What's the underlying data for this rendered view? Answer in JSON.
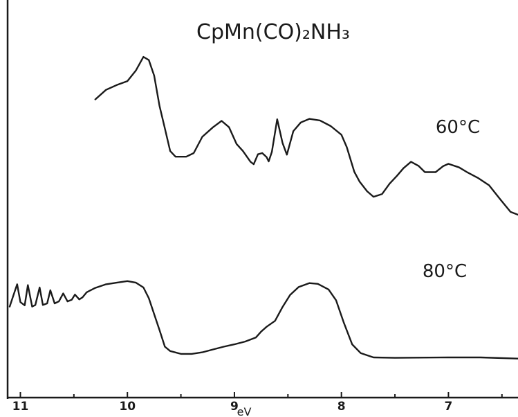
{
  "chart_data": {
    "type": "line",
    "title": "CpMn(CO)₂NH₃",
    "xlabel": "eV",
    "ylabel": "",
    "x_reversed": true,
    "xlim": [
      11.1,
      6.35
    ],
    "ylim": [
      0,
      1
    ],
    "x_ticks": [
      {
        "value": 11,
        "label": "11"
      },
      {
        "value": 10,
        "label": "10"
      },
      {
        "value": 9,
        "label": "9"
      },
      {
        "value": 8,
        "label": "8"
      },
      {
        "value": 7,
        "label": "7"
      }
    ],
    "minor_ticks": [
      10.5,
      9.5,
      8.5,
      7.5,
      6.5
    ],
    "grid": false,
    "color": "#1a1a1a",
    "series": [
      {
        "name": "60°C",
        "points": [
          [
            10.3,
            0.75
          ],
          [
            10.2,
            0.774
          ],
          [
            10.1,
            0.786
          ],
          [
            10.0,
            0.796
          ],
          [
            9.92,
            0.823
          ],
          [
            9.85,
            0.857
          ],
          [
            9.8,
            0.849
          ],
          [
            9.75,
            0.81
          ],
          [
            9.7,
            0.734
          ],
          [
            9.65,
            0.677
          ],
          [
            9.6,
            0.62
          ],
          [
            9.55,
            0.606
          ],
          [
            9.45,
            0.606
          ],
          [
            9.38,
            0.615
          ],
          [
            9.3,
            0.656
          ],
          [
            9.2,
            0.68
          ],
          [
            9.12,
            0.696
          ],
          [
            9.05,
            0.68
          ],
          [
            8.98,
            0.638
          ],
          [
            8.92,
            0.62
          ],
          [
            8.85,
            0.593
          ],
          [
            8.82,
            0.587
          ],
          [
            8.78,
            0.612
          ],
          [
            8.74,
            0.615
          ],
          [
            8.7,
            0.605
          ],
          [
            8.68,
            0.594
          ],
          [
            8.65,
            0.618
          ],
          [
            8.6,
            0.7
          ],
          [
            8.55,
            0.64
          ],
          [
            8.51,
            0.611
          ],
          [
            8.45,
            0.67
          ],
          [
            8.38,
            0.692
          ],
          [
            8.3,
            0.701
          ],
          [
            8.2,
            0.697
          ],
          [
            8.1,
            0.683
          ],
          [
            8.0,
            0.661
          ],
          [
            7.95,
            0.63
          ],
          [
            7.88,
            0.568
          ],
          [
            7.83,
            0.543
          ],
          [
            7.76,
            0.519
          ],
          [
            7.7,
            0.505
          ],
          [
            7.62,
            0.512
          ],
          [
            7.55,
            0.538
          ],
          [
            7.48,
            0.558
          ],
          [
            7.42,
            0.577
          ],
          [
            7.35,
            0.593
          ],
          [
            7.28,
            0.583
          ],
          [
            7.22,
            0.567
          ],
          [
            7.12,
            0.567
          ],
          [
            7.05,
            0.582
          ],
          [
            7.0,
            0.588
          ],
          [
            6.9,
            0.579
          ],
          [
            6.82,
            0.566
          ],
          [
            6.72,
            0.552
          ],
          [
            6.62,
            0.534
          ],
          [
            6.52,
            0.5
          ],
          [
            6.42,
            0.467
          ],
          [
            6.35,
            0.46
          ]
        ]
      },
      {
        "name": "80°C",
        "points": [
          [
            11.1,
            0.229
          ],
          [
            11.07,
            0.253
          ],
          [
            11.03,
            0.285
          ],
          [
            11.0,
            0.24
          ],
          [
            10.96,
            0.232
          ],
          [
            10.93,
            0.283
          ],
          [
            10.89,
            0.229
          ],
          [
            10.86,
            0.233
          ],
          [
            10.82,
            0.277
          ],
          [
            10.79,
            0.233
          ],
          [
            10.75,
            0.237
          ],
          [
            10.72,
            0.27
          ],
          [
            10.68,
            0.237
          ],
          [
            10.64,
            0.242
          ],
          [
            10.6,
            0.262
          ],
          [
            10.56,
            0.242
          ],
          [
            10.52,
            0.246
          ],
          [
            10.49,
            0.259
          ],
          [
            10.45,
            0.247
          ],
          [
            10.42,
            0.252
          ],
          [
            10.38,
            0.265
          ],
          [
            10.3,
            0.276
          ],
          [
            10.2,
            0.285
          ],
          [
            10.1,
            0.289
          ],
          [
            10.0,
            0.293
          ],
          [
            9.92,
            0.289
          ],
          [
            9.85,
            0.277
          ],
          [
            9.8,
            0.25
          ],
          [
            9.75,
            0.21
          ],
          [
            9.7,
            0.17
          ],
          [
            9.65,
            0.128
          ],
          [
            9.6,
            0.117
          ],
          [
            9.5,
            0.11
          ],
          [
            9.4,
            0.11
          ],
          [
            9.3,
            0.114
          ],
          [
            9.2,
            0.121
          ],
          [
            9.1,
            0.128
          ],
          [
            9.0,
            0.134
          ],
          [
            8.9,
            0.141
          ],
          [
            8.8,
            0.151
          ],
          [
            8.75,
            0.166
          ],
          [
            8.7,
            0.178
          ],
          [
            8.62,
            0.193
          ],
          [
            8.55,
            0.228
          ],
          [
            8.48,
            0.258
          ],
          [
            8.4,
            0.278
          ],
          [
            8.3,
            0.288
          ],
          [
            8.22,
            0.286
          ],
          [
            8.12,
            0.272
          ],
          [
            8.05,
            0.245
          ],
          [
            7.98,
            0.19
          ],
          [
            7.9,
            0.134
          ],
          [
            7.82,
            0.112
          ],
          [
            7.7,
            0.101
          ],
          [
            7.5,
            0.1
          ],
          [
            7.0,
            0.101
          ],
          [
            6.7,
            0.101
          ],
          [
            6.35,
            0.098
          ]
        ]
      }
    ]
  }
}
